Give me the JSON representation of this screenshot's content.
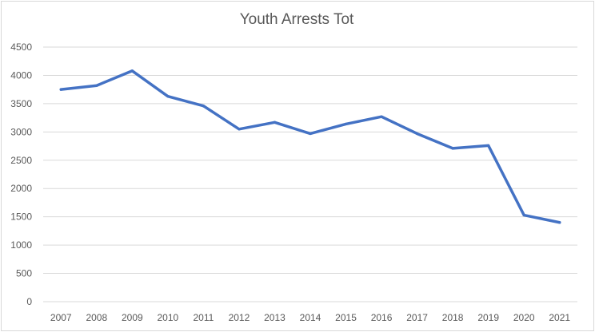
{
  "chart_data": {
    "type": "line",
    "title": "Youth Arrests Tot",
    "xlabel": "",
    "ylabel": "",
    "categories": [
      "2007",
      "2008",
      "2009",
      "2010",
      "2011",
      "2012",
      "2013",
      "2014",
      "2015",
      "2016",
      "2017",
      "2018",
      "2019",
      "2020",
      "2021"
    ],
    "series": [
      {
        "values": [
          3750,
          3820,
          4080,
          3630,
          3460,
          3050,
          3170,
          2970,
          3140,
          3270,
          2970,
          2710,
          2760,
          1530,
          1400
        ]
      }
    ],
    "ylim": [
      0,
      4500
    ],
    "yticks": [
      "0",
      "500",
      "1000",
      "1500",
      "2000",
      "2500",
      "3000",
      "3500",
      "4000",
      "4500"
    ],
    "grid": true,
    "legend": "none",
    "colors": {
      "line": "#4472c4",
      "grid": "#d9d9d9",
      "text": "#595959"
    }
  }
}
